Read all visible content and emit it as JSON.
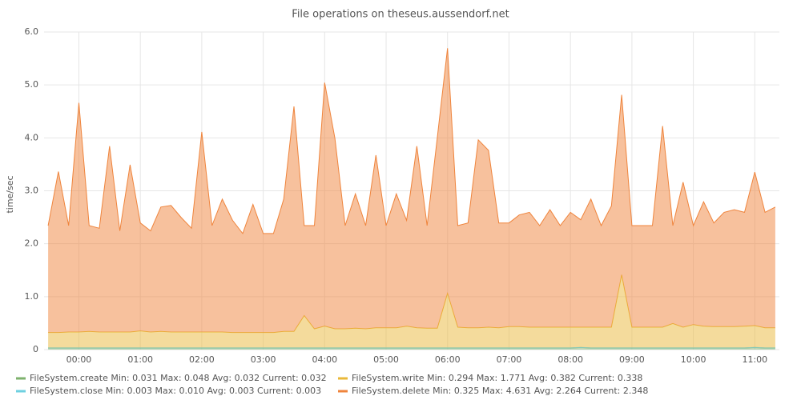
{
  "chart_data": {
    "type": "stacked-area",
    "title": "File operations on theseus.aussendorf.net",
    "ylabel": "time/sec",
    "x": [
      "23:30",
      "23:40",
      "23:50",
      "00:00",
      "00:10",
      "00:20",
      "00:30",
      "00:40",
      "00:50",
      "01:00",
      "01:10",
      "01:20",
      "01:30",
      "01:40",
      "01:50",
      "02:00",
      "02:10",
      "02:20",
      "02:30",
      "02:40",
      "02:50",
      "03:00",
      "03:10",
      "03:20",
      "03:30",
      "03:40",
      "03:50",
      "04:00",
      "04:10",
      "04:20",
      "04:30",
      "04:40",
      "04:50",
      "05:00",
      "05:10",
      "05:20",
      "05:30",
      "05:40",
      "05:50",
      "06:00",
      "06:10",
      "06:20",
      "06:30",
      "06:40",
      "06:50",
      "07:00",
      "07:10",
      "07:20",
      "07:30",
      "07:40",
      "07:50",
      "08:00",
      "08:10",
      "08:20",
      "08:30",
      "08:40",
      "08:50",
      "09:00",
      "09:10",
      "09:20",
      "09:30",
      "09:40",
      "09:50",
      "10:00",
      "10:10",
      "10:20",
      "10:30",
      "10:40",
      "10:50",
      "11:00",
      "11:10",
      "11:20"
    ],
    "xlim": [
      "23:26",
      "11:24"
    ],
    "xticks": [
      "00:00",
      "01:00",
      "02:00",
      "03:00",
      "04:00",
      "05:00",
      "06:00",
      "07:00",
      "08:00",
      "09:00",
      "10:00",
      "11:00"
    ],
    "ylim": [
      0,
      6
    ],
    "yticks": [
      0,
      {
        "value": 1,
        "label": "1.0"
      },
      {
        "value": 2,
        "label": "2.0"
      },
      {
        "value": 3,
        "label": "3.0"
      },
      {
        "value": 4,
        "label": "4.0"
      },
      {
        "value": 5,
        "label": "5.0"
      },
      {
        "value": 6,
        "label": "6.0"
      }
    ],
    "grid": true,
    "stat_labels": [
      "Min:",
      "Max:",
      "Avg:",
      "Current:"
    ],
    "series": [
      {
        "name": "FileSystem.create",
        "color": "#7eb26d",
        "stats": [
          0.031,
          0.048,
          0.032,
          0.032
        ],
        "values": [
          0.03,
          0.03,
          0.03,
          0.03,
          0.03,
          0.03,
          0.03,
          0.03,
          0.03,
          0.03,
          0.03,
          0.03,
          0.03,
          0.03,
          0.03,
          0.03,
          0.03,
          0.03,
          0.03,
          0.03,
          0.03,
          0.03,
          0.03,
          0.03,
          0.03,
          0.03,
          0.03,
          0.03,
          0.03,
          0.03,
          0.03,
          0.03,
          0.03,
          0.03,
          0.03,
          0.03,
          0.03,
          0.03,
          0.03,
          0.03,
          0.03,
          0.03,
          0.03,
          0.03,
          0.03,
          0.03,
          0.03,
          0.03,
          0.03,
          0.03,
          0.03,
          0.03,
          0.04,
          0.03,
          0.03,
          0.03,
          0.03,
          0.03,
          0.03,
          0.03,
          0.03,
          0.03,
          0.03,
          0.03,
          0.03,
          0.03,
          0.03,
          0.03,
          0.03,
          0.04,
          0.03,
          0.03
        ]
      },
      {
        "name": "FileSystem.close",
        "color": "#6ed0e0",
        "stats": [
          0.003,
          {
            "value": 0.01,
            "label": "0.010"
          },
          0.003,
          0.003
        ],
        "values": [
          0.003,
          0.003,
          0.003,
          0.003,
          0.003,
          0.003,
          0.003,
          0.003,
          0.003,
          0.003,
          0.003,
          0.003,
          0.003,
          0.003,
          0.003,
          0.003,
          0.003,
          0.003,
          0.003,
          0.003,
          0.003,
          0.003,
          0.003,
          0.003,
          0.003,
          0.003,
          0.003,
          0.003,
          0.003,
          0.003,
          0.003,
          0.003,
          0.003,
          0.003,
          0.003,
          0.003,
          0.003,
          0.003,
          0.003,
          0.003,
          0.003,
          0.003,
          0.003,
          0.003,
          0.003,
          0.003,
          0.003,
          0.003,
          0.003,
          0.003,
          0.003,
          0.003,
          0.003,
          0.003,
          0.003,
          0.003,
          0.003,
          0.003,
          0.003,
          0.003,
          0.003,
          0.003,
          0.003,
          0.003,
          0.003,
          0.003,
          0.003,
          0.003,
          0.003,
          0.003,
          0.003,
          0.003
        ]
      },
      {
        "name": "FileSystem.write",
        "color": "#eab839",
        "stats": [
          0.294,
          1.771,
          0.382,
          0.338
        ],
        "values": [
          0.29,
          0.29,
          0.3,
          0.3,
          0.31,
          0.3,
          0.3,
          0.3,
          0.3,
          0.32,
          0.3,
          0.31,
          0.3,
          0.3,
          0.3,
          0.3,
          0.3,
          0.3,
          0.29,
          0.29,
          0.29,
          0.29,
          0.29,
          0.31,
          0.31,
          0.61,
          0.36,
          0.41,
          0.36,
          0.36,
          0.37,
          0.36,
          0.38,
          0.38,
          0.38,
          0.41,
          0.38,
          0.37,
          0.37,
          1.03,
          0.39,
          0.38,
          0.38,
          0.39,
          0.38,
          0.4,
          0.4,
          0.39,
          0.39,
          0.39,
          0.39,
          0.39,
          0.38,
          0.39,
          0.39,
          0.39,
          1.38,
          0.39,
          0.39,
          0.39,
          0.39,
          0.46,
          0.39,
          0.44,
          0.41,
          0.4,
          0.4,
          0.4,
          0.41,
          0.41,
          0.38,
          0.38
        ]
      },
      {
        "name": "FileSystem.delete",
        "color": "#ef843c",
        "stats": [
          0.325,
          4.631,
          2.264,
          2.348
        ],
        "values": [
          2.02,
          3.04,
          2.01,
          4.33,
          2.0,
          1.96,
          3.51,
          1.91,
          3.16,
          2.04,
          1.91,
          2.35,
          2.39,
          2.16,
          1.96,
          3.78,
          2.01,
          2.51,
          2.12,
          1.87,
          2.42,
          1.87,
          1.87,
          2.5,
          4.25,
          1.7,
          1.95,
          4.6,
          3.6,
          1.95,
          2.54,
          1.95,
          3.26,
          1.93,
          2.53,
          2.0,
          3.43,
          1.94,
          3.61,
          4.63,
          1.92,
          1.98,
          3.55,
          3.34,
          1.98,
          1.96,
          2.11,
          2.17,
          1.92,
          2.22,
          1.92,
          2.17,
          2.03,
          2.42,
          1.92,
          2.29,
          3.4,
          1.92,
          1.92,
          1.92,
          3.8,
          1.85,
          2.74,
          1.87,
          2.35,
          1.96,
          2.16,
          2.21,
          2.15,
          2.9,
          2.18,
          2.28
        ]
      }
    ]
  }
}
